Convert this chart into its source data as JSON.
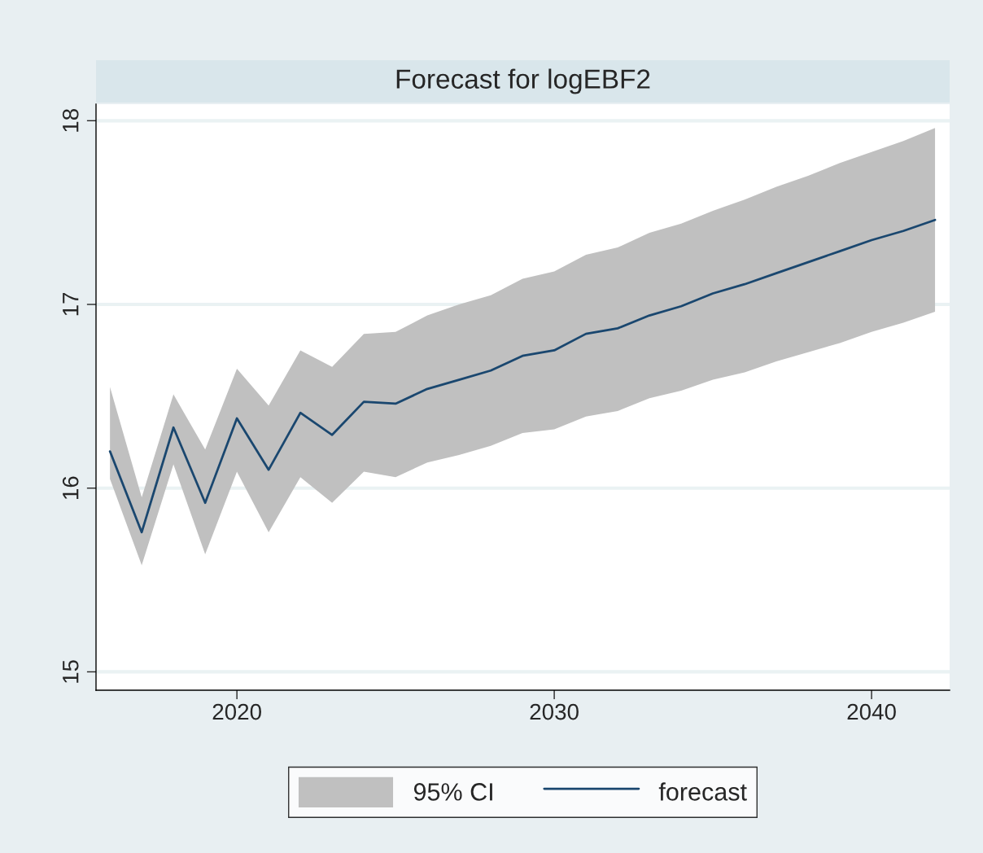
{
  "chart_data": {
    "type": "line",
    "title": "Forecast for logEBF2",
    "x": [
      2016,
      2017,
      2018,
      2019,
      2020,
      2021,
      2022,
      2023,
      2024,
      2025,
      2026,
      2027,
      2028,
      2029,
      2030,
      2031,
      2032,
      2033,
      2034,
      2035,
      2036,
      2037,
      2038,
      2039,
      2040,
      2041,
      2042
    ],
    "series": [
      {
        "name": "forecast",
        "color": "#1a476f",
        "values": [
          16.2,
          15.76,
          16.33,
          15.92,
          16.38,
          16.1,
          16.41,
          16.29,
          16.47,
          16.46,
          16.54,
          16.59,
          16.64,
          16.72,
          16.75,
          16.84,
          16.87,
          16.94,
          16.99,
          17.06,
          17.11,
          17.17,
          17.23,
          17.29,
          17.35,
          17.4,
          17.46
        ],
        "lower": [
          16.05,
          15.58,
          16.13,
          15.64,
          16.09,
          15.76,
          16.06,
          15.92,
          16.09,
          16.06,
          16.14,
          16.18,
          16.23,
          16.3,
          16.32,
          16.39,
          16.42,
          16.49,
          16.53,
          16.59,
          16.63,
          16.69,
          16.74,
          16.79,
          16.85,
          16.9,
          16.96
        ],
        "upper": [
          16.55,
          15.95,
          16.51,
          16.21,
          16.65,
          16.45,
          16.75,
          16.66,
          16.84,
          16.85,
          16.94,
          17.0,
          17.05,
          17.14,
          17.18,
          17.27,
          17.31,
          17.39,
          17.44,
          17.51,
          17.57,
          17.64,
          17.7,
          17.77,
          17.83,
          17.89,
          17.96
        ]
      }
    ],
    "annotations": [
      "95% CI"
    ],
    "xlim": [
      2015.56,
      2042.46
    ],
    "ylim": [
      14.9,
      18.09
    ],
    "xticks": [
      2020,
      2030,
      2040
    ],
    "yticks": [
      15,
      16,
      17,
      18
    ],
    "grid": "y",
    "legend": "bottom"
  }
}
